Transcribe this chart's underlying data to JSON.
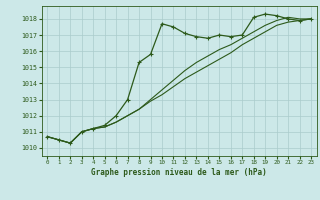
{
  "title": "Graphe pression niveau de la mer (hPa)",
  "xlim": [
    -0.5,
    23.5
  ],
  "ylim": [
    1009.5,
    1018.8
  ],
  "yticks": [
    1010,
    1011,
    1012,
    1013,
    1014,
    1015,
    1016,
    1017,
    1018
  ],
  "xticks": [
    0,
    1,
    2,
    3,
    4,
    5,
    6,
    7,
    8,
    9,
    10,
    11,
    12,
    13,
    14,
    15,
    16,
    17,
    18,
    19,
    20,
    21,
    22,
    23
  ],
  "bg_color": "#cce8e8",
  "grid_color": "#aacccc",
  "line_color": "#2d5a1b",
  "series1_x": [
    0,
    1,
    2,
    3,
    4,
    5,
    6,
    7,
    8,
    9,
    10,
    11,
    12,
    13,
    14,
    15,
    16,
    17,
    18,
    19,
    20,
    21,
    22,
    23
  ],
  "series1_y": [
    1010.7,
    1010.5,
    1010.3,
    1011.0,
    1011.2,
    1011.4,
    1012.0,
    1013.0,
    1015.3,
    1015.8,
    1017.7,
    1017.5,
    1017.1,
    1016.9,
    1016.8,
    1017.0,
    1016.9,
    1017.0,
    1018.1,
    1018.3,
    1018.2,
    1018.0,
    1017.9,
    1018.0
  ],
  "series2_x": [
    0,
    1,
    2,
    3,
    4,
    5,
    6,
    7,
    8,
    9,
    10,
    11,
    12,
    13,
    14,
    15,
    16,
    17,
    18,
    19,
    20,
    21,
    22,
    23
  ],
  "series2_y": [
    1010.7,
    1010.5,
    1010.3,
    1011.0,
    1011.2,
    1011.3,
    1011.6,
    1012.0,
    1012.4,
    1012.9,
    1013.3,
    1013.8,
    1014.3,
    1014.7,
    1015.1,
    1015.5,
    1015.9,
    1016.4,
    1016.8,
    1017.2,
    1017.6,
    1017.8,
    1017.9,
    1018.0
  ],
  "series3_x": [
    0,
    1,
    2,
    3,
    4,
    5,
    6,
    7,
    8,
    9,
    10,
    11,
    12,
    13,
    14,
    15,
    16,
    17,
    18,
    19,
    20,
    21,
    22,
    23
  ],
  "series3_y": [
    1010.7,
    1010.5,
    1010.3,
    1011.0,
    1011.2,
    1011.3,
    1011.6,
    1012.0,
    1012.4,
    1013.0,
    1013.6,
    1014.2,
    1014.8,
    1015.3,
    1015.7,
    1016.1,
    1016.4,
    1016.8,
    1017.2,
    1017.6,
    1017.9,
    1018.1,
    1018.0,
    1018.0
  ]
}
